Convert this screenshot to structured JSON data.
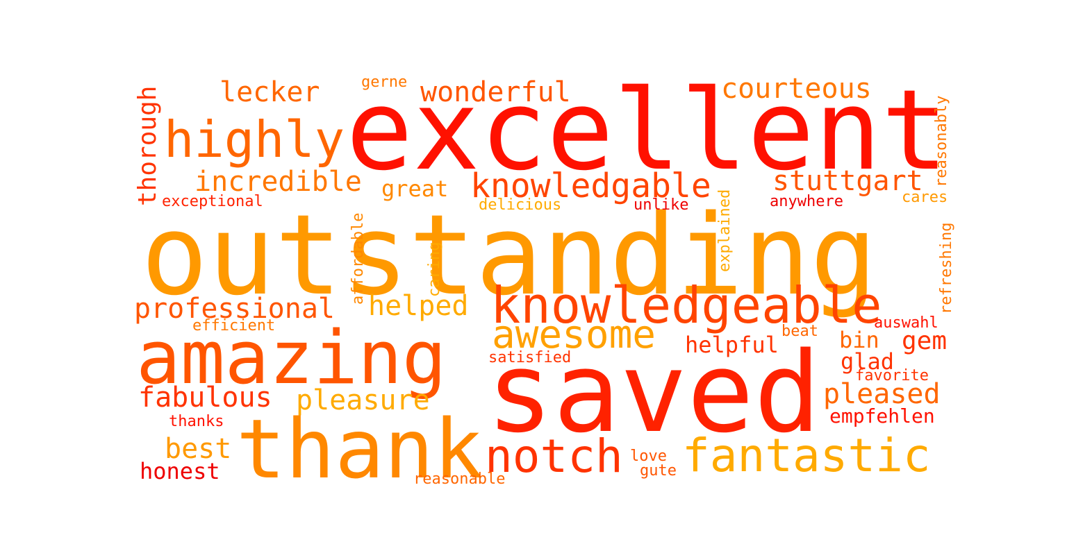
{
  "words": {
    "outstanding": {
      "text": "outstanding",
      "color": "#ff9900"
    },
    "excellent": {
      "text": "excellent",
      "color": "#ff1100"
    },
    "saved": {
      "text": "saved",
      "color": "#ff2200"
    },
    "thank": {
      "text": "thank",
      "color": "#ff8800"
    },
    "amazing": {
      "text": "amazing",
      "color": "#ff5500"
    },
    "knowledgeable": {
      "text": "knowledgeable",
      "color": "#ff4400"
    },
    "notch": {
      "text": "notch",
      "color": "#ff3300"
    },
    "fantastic": {
      "text": "fantastic",
      "color": "#ffaa00"
    },
    "highly": {
      "text": "highly",
      "color": "#ff6600"
    },
    "awesome": {
      "text": "awesome",
      "color": "#ffa000"
    },
    "knowledgable": {
      "text": "knowledgable",
      "color": "#ff4400"
    },
    "stuttgart": {
      "text": "stuttgart",
      "color": "#ff5500"
    },
    "incredible": {
      "text": "incredible",
      "color": "#ff7700"
    },
    "professional": {
      "text": "professional",
      "color": "#ff5500"
    },
    "helped": {
      "text": "helped",
      "color": "#ffaa00"
    },
    "lecker": {
      "text": "lecker",
      "color": "#ff6600"
    },
    "wonderful": {
      "text": "wonderful",
      "color": "#ff5500"
    },
    "courteous": {
      "text": "courteous",
      "color": "#ff7700"
    },
    "fabulous": {
      "text": "fabulous",
      "color": "#ff3300"
    },
    "pleasure": {
      "text": "pleasure",
      "color": "#ffaa00"
    },
    "pleased": {
      "text": "pleased",
      "color": "#ff6600"
    },
    "best": {
      "text": "best",
      "color": "#ff9900"
    },
    "honest": {
      "text": "honest",
      "color": "#ee0000"
    },
    "great": {
      "text": "great",
      "color": "#ff8800"
    },
    "helpful": {
      "text": "helpful",
      "color": "#ff3300"
    },
    "gem": {
      "text": "gem",
      "color": "#ff3300"
    },
    "bin": {
      "text": "bin",
      "color": "#ff6600"
    },
    "glad": {
      "text": "glad",
      "color": "#ff3300"
    },
    "empfehlen": {
      "text": "empfehlen",
      "color": "#ff1100"
    },
    "auswahl": {
      "text": "auswahl",
      "color": "#ff1100"
    },
    "exceptional": {
      "text": "exceptional",
      "color": "#ff2200"
    },
    "delicious": {
      "text": "delicious",
      "color": "#ffaa00"
    },
    "unlike": {
      "text": "unlike",
      "color": "#ee0000"
    },
    "anywhere": {
      "text": "anywhere",
      "color": "#ee0000"
    },
    "cares": {
      "text": "cares",
      "color": "#ff9900"
    },
    "efficient": {
      "text": "efficient",
      "color": "#ff7700"
    },
    "satisfied": {
      "text": "satisfied",
      "color": "#ff3300"
    },
    "beat": {
      "text": "beat",
      "color": "#ff6600"
    },
    "favorite": {
      "text": "favorite",
      "color": "#ff3300"
    },
    "thanks": {
      "text": "thanks",
      "color": "#ff1100"
    },
    "love": {
      "text": "love",
      "color": "#ff5500"
    },
    "gute": {
      "text": "gute",
      "color": "#ff5500"
    },
    "reasonable": {
      "text": "reasonable",
      "color": "#ff6600"
    },
    "gerne": {
      "text": "gerne",
      "color": "#ff7700"
    },
    "thorough": {
      "text": "thorough",
      "color": "#ff3300"
    },
    "affordable": {
      "text": "affordable",
      "color": "#ff8800"
    },
    "caring": {
      "text": "caring",
      "color": "#ffaa00"
    },
    "explained": {
      "text": "explained",
      "color": "#ffaa00"
    },
    "reasonably": {
      "text": "reasonably",
      "color": "#ff7700"
    },
    "refreshing": {
      "text": "refreshing",
      "color": "#ff7700"
    }
  }
}
